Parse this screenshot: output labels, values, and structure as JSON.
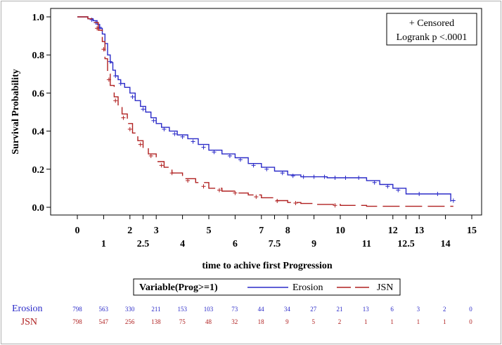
{
  "chart_data": {
    "type": "line",
    "ylabel": "Survival Probability",
    "xlabel": "time to achive first Progression",
    "ylim": [
      0,
      1
    ],
    "xlim": [
      -0.5,
      15.5
    ],
    "y_ticks": [
      "0.0",
      "0.2",
      "0.4",
      "0.6",
      "0.8",
      "1.0"
    ],
    "y_tick_values": [
      0,
      0.2,
      0.4,
      0.6,
      0.8,
      1.0
    ],
    "x_ticks_row1": [
      "0",
      "2",
      "3",
      "5",
      "7",
      "8",
      "10",
      "12",
      "13",
      "15"
    ],
    "x_ticks_row1_values": [
      0,
      2,
      3,
      5,
      7,
      8,
      10,
      12,
      13,
      15
    ],
    "x_ticks_row2": [
      "1",
      "2.5",
      "4",
      "6",
      "7.5",
      "9",
      "11",
      "12.5",
      "14"
    ],
    "x_ticks_row2_values": [
      1,
      2.5,
      4,
      6,
      7.5,
      9,
      11,
      12.5,
      14
    ],
    "inset": {
      "censored_label": "+ Censored",
      "logrank_label": "Logrank p <.0001"
    },
    "legend": {
      "title": "Variable(Prog>=1)",
      "placement": "bottom-center"
    },
    "series": [
      {
        "name": "Erosion",
        "color": "#2b2bc8",
        "points": [
          [
            0,
            1.0
          ],
          [
            0.4,
            0.99
          ],
          [
            0.6,
            0.98
          ],
          [
            0.75,
            0.96
          ],
          [
            0.85,
            0.94
          ],
          [
            0.95,
            0.91
          ],
          [
            1.05,
            0.86
          ],
          [
            1.15,
            0.8
          ],
          [
            1.25,
            0.76
          ],
          [
            1.35,
            0.72
          ],
          [
            1.45,
            0.69
          ],
          [
            1.55,
            0.67
          ],
          [
            1.65,
            0.65
          ],
          [
            1.8,
            0.63
          ],
          [
            2.0,
            0.6
          ],
          [
            2.2,
            0.56
          ],
          [
            2.4,
            0.53
          ],
          [
            2.6,
            0.5
          ],
          [
            2.8,
            0.47
          ],
          [
            3.0,
            0.44
          ],
          [
            3.2,
            0.42
          ],
          [
            3.5,
            0.4
          ],
          [
            3.8,
            0.38
          ],
          [
            4.2,
            0.36
          ],
          [
            4.6,
            0.33
          ],
          [
            5.0,
            0.3
          ],
          [
            5.5,
            0.28
          ],
          [
            6.0,
            0.26
          ],
          [
            6.5,
            0.23
          ],
          [
            7.0,
            0.21
          ],
          [
            7.5,
            0.19
          ],
          [
            8.0,
            0.17
          ],
          [
            8.5,
            0.16
          ],
          [
            9.0,
            0.16
          ],
          [
            9.5,
            0.155
          ],
          [
            10.0,
            0.155
          ],
          [
            10.5,
            0.155
          ],
          [
            11.0,
            0.14
          ],
          [
            11.5,
            0.12
          ],
          [
            12.0,
            0.1
          ],
          [
            12.5,
            0.07
          ],
          [
            13.0,
            0.07
          ],
          [
            13.5,
            0.07
          ],
          [
            14.0,
            0.07
          ],
          [
            14.2,
            0.03
          ]
        ],
        "censored": [
          [
            0.55,
            0.985
          ],
          [
            0.7,
            0.97
          ],
          [
            0.85,
            0.945
          ],
          [
            1.25,
            0.765
          ],
          [
            1.45,
            0.69
          ],
          [
            1.65,
            0.65
          ],
          [
            2.1,
            0.58
          ],
          [
            2.5,
            0.515
          ],
          [
            2.9,
            0.455
          ],
          [
            3.3,
            0.41
          ],
          [
            3.7,
            0.385
          ],
          [
            4.0,
            0.37
          ],
          [
            4.4,
            0.345
          ],
          [
            4.8,
            0.315
          ],
          [
            5.2,
            0.29
          ],
          [
            5.8,
            0.27
          ],
          [
            6.2,
            0.25
          ],
          [
            6.7,
            0.22
          ],
          [
            7.2,
            0.2
          ],
          [
            7.8,
            0.18
          ],
          [
            8.2,
            0.165
          ],
          [
            8.6,
            0.16
          ],
          [
            9.0,
            0.16
          ],
          [
            9.4,
            0.16
          ],
          [
            9.8,
            0.155
          ],
          [
            10.2,
            0.155
          ],
          [
            10.7,
            0.155
          ],
          [
            11.3,
            0.13
          ],
          [
            11.8,
            0.11
          ],
          [
            12.2,
            0.09
          ],
          [
            13.0,
            0.07
          ],
          [
            13.7,
            0.07
          ],
          [
            14.3,
            0.035
          ]
        ]
      },
      {
        "name": "JSN",
        "color": "#b02020",
        "points": [
          [
            0,
            1.0
          ],
          [
            0.4,
            0.99
          ],
          [
            0.6,
            0.97
          ],
          [
            0.8,
            0.93
          ],
          [
            0.95,
            0.87
          ],
          [
            1.05,
            0.78
          ],
          [
            1.15,
            0.7
          ],
          [
            1.25,
            0.64
          ],
          [
            1.4,
            0.58
          ],
          [
            1.55,
            0.53
          ],
          [
            1.7,
            0.49
          ],
          [
            1.9,
            0.44
          ],
          [
            2.1,
            0.39
          ],
          [
            2.3,
            0.35
          ],
          [
            2.5,
            0.31
          ],
          [
            2.7,
            0.28
          ],
          [
            3.0,
            0.24
          ],
          [
            3.3,
            0.21
          ],
          [
            3.6,
            0.18
          ],
          [
            4.0,
            0.15
          ],
          [
            4.5,
            0.13
          ],
          [
            5.0,
            0.1
          ],
          [
            5.5,
            0.085
          ],
          [
            6.0,
            0.075
          ],
          [
            6.5,
            0.065
          ],
          [
            7.0,
            0.05
          ],
          [
            7.5,
            0.035
          ],
          [
            8.0,
            0.025
          ],
          [
            8.5,
            0.02
          ],
          [
            9.0,
            0.015
          ],
          [
            10.0,
            0.01
          ],
          [
            11.0,
            0.005
          ],
          [
            12.0,
            0.005
          ],
          [
            13.0,
            0.005
          ],
          [
            14.0,
            0.005
          ],
          [
            14.3,
            0.005
          ]
        ],
        "censored": [
          [
            0.75,
            0.94
          ],
          [
            1.0,
            0.83
          ],
          [
            1.2,
            0.67
          ],
          [
            1.45,
            0.56
          ],
          [
            1.75,
            0.47
          ],
          [
            2.0,
            0.41
          ],
          [
            2.4,
            0.33
          ],
          [
            2.8,
            0.27
          ],
          [
            3.2,
            0.22
          ],
          [
            3.6,
            0.18
          ],
          [
            4.2,
            0.14
          ],
          [
            4.8,
            0.11
          ],
          [
            5.4,
            0.09
          ],
          [
            6.0,
            0.075
          ],
          [
            6.8,
            0.055
          ],
          [
            7.6,
            0.033
          ],
          [
            8.3,
            0.022
          ],
          [
            9.8,
            0.01
          ]
        ]
      }
    ],
    "at_risk": {
      "Erosion": [
        "798",
        "563",
        "330",
        "211",
        "153",
        "103",
        "73",
        "44",
        "34",
        "27",
        "21",
        "13",
        "6",
        "3",
        "2",
        "0"
      ],
      "JSN": [
        "798",
        "547",
        "256",
        "138",
        "75",
        "48",
        "32",
        "18",
        "9",
        "5",
        "2",
        "1",
        "1",
        "1",
        "1",
        "0"
      ]
    }
  }
}
